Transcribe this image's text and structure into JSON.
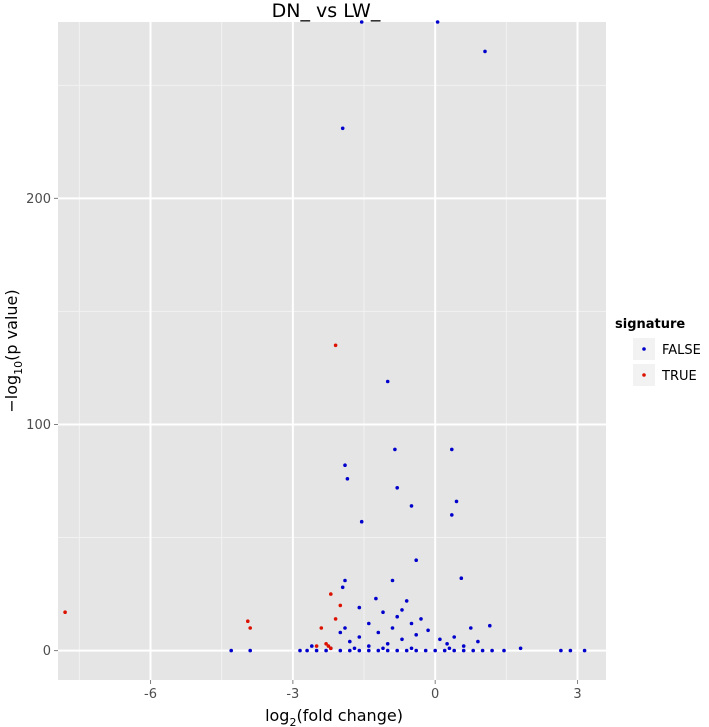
{
  "chart_data": {
    "type": "scatter",
    "title": "DN_  vs  LW_",
    "xlabel_main": "log",
    "xlabel_sub": "2",
    "xlabel_rest": "(fold change)",
    "ylabel_prefix": "−log",
    "ylabel_sub": "10",
    "ylabel_rest": "(p value)",
    "xlim": [
      -7.95,
      3.6
    ],
    "ylim": [
      -13,
      278
    ],
    "x_ticks": [
      -6,
      -3,
      0,
      3
    ],
    "x_tick_labels": [
      "-6",
      "-3",
      "0",
      "3"
    ],
    "y_ticks": [
      0,
      100,
      200
    ],
    "y_tick_labels": [
      "0",
      "100",
      "200"
    ],
    "grid": true,
    "legend": {
      "title": "signature",
      "placement": "right",
      "entries": [
        {
          "label": "FALSE",
          "color": "#0000cc"
        },
        {
          "label": "TRUE",
          "color": "#dd1100"
        }
      ]
    },
    "series": [
      {
        "name": "FALSE",
        "color": "#0000cc",
        "points": [
          [
            1.05,
            265
          ],
          [
            -1.95,
            231
          ],
          [
            -1.0,
            119
          ],
          [
            -0.85,
            89
          ],
          [
            0.35,
            89
          ],
          [
            -1.9,
            82
          ],
          [
            -1.85,
            76
          ],
          [
            -0.8,
            72
          ],
          [
            0.45,
            66
          ],
          [
            -0.5,
            64
          ],
          [
            0.35,
            60
          ],
          [
            -1.55,
            57
          ],
          [
            -0.4,
            40
          ],
          [
            0.55,
            32
          ],
          [
            -1.9,
            31
          ],
          [
            -0.9,
            31
          ],
          [
            -1.95,
            28
          ],
          [
            -1.25,
            23
          ],
          [
            -0.6,
            22
          ],
          [
            -1.6,
            19
          ],
          [
            -0.7,
            18
          ],
          [
            -1.1,
            17
          ],
          [
            -0.8,
            15
          ],
          [
            -0.3,
            14
          ],
          [
            -0.5,
            12
          ],
          [
            1.15,
            11
          ],
          [
            -1.4,
            12
          ],
          [
            -1.9,
            10
          ],
          [
            -0.9,
            10
          ],
          [
            0.75,
            10
          ],
          [
            -0.15,
            9
          ],
          [
            -2.0,
            8
          ],
          [
            -1.2,
            8
          ],
          [
            -0.4,
            7
          ],
          [
            0.4,
            6
          ],
          [
            -1.6,
            6
          ],
          [
            0.1,
            5
          ],
          [
            -0.7,
            5
          ],
          [
            -1.8,
            4
          ],
          [
            0.9,
            4
          ],
          [
            0.25,
            3
          ],
          [
            -1.0,
            3
          ],
          [
            -2.6,
            2
          ],
          [
            -1.4,
            2
          ],
          [
            0.6,
            2
          ],
          [
            1.8,
            1
          ],
          [
            -4.3,
            0
          ],
          [
            -3.9,
            0
          ],
          [
            -2.85,
            0
          ],
          [
            -2.7,
            0
          ],
          [
            -2.5,
            0
          ],
          [
            -2.3,
            0
          ],
          [
            -2.0,
            0
          ],
          [
            -1.8,
            0
          ],
          [
            -1.6,
            0
          ],
          [
            -1.4,
            0
          ],
          [
            -1.2,
            0
          ],
          [
            -1.0,
            0
          ],
          [
            -0.8,
            0
          ],
          [
            -0.6,
            0
          ],
          [
            -0.4,
            0
          ],
          [
            -0.2,
            0
          ],
          [
            0.0,
            0
          ],
          [
            0.2,
            0
          ],
          [
            0.4,
            0
          ],
          [
            0.6,
            0
          ],
          [
            0.8,
            0
          ],
          [
            1.0,
            0
          ],
          [
            1.2,
            0
          ],
          [
            1.45,
            0
          ],
          [
            2.65,
            0
          ],
          [
            2.85,
            0
          ],
          [
            3.15,
            0
          ],
          [
            -2.2,
            1
          ],
          [
            -1.7,
            1
          ],
          [
            -1.1,
            1
          ],
          [
            -0.5,
            1
          ],
          [
            0.3,
            1
          ],
          [
            -1.55,
            278
          ],
          [
            0.05,
            278
          ]
        ]
      },
      {
        "name": "TRUE",
        "color": "#dd1100",
        "points": [
          [
            -2.1,
            135
          ],
          [
            -7.8,
            17
          ],
          [
            -3.95,
            13
          ],
          [
            -3.9,
            10
          ],
          [
            -2.2,
            25
          ],
          [
            -2.0,
            20
          ],
          [
            -2.1,
            14
          ],
          [
            -2.4,
            10
          ],
          [
            -2.3,
            3
          ],
          [
            -2.5,
            2
          ],
          [
            -2.25,
            2
          ],
          [
            -2.2,
            1
          ]
        ]
      }
    ]
  }
}
